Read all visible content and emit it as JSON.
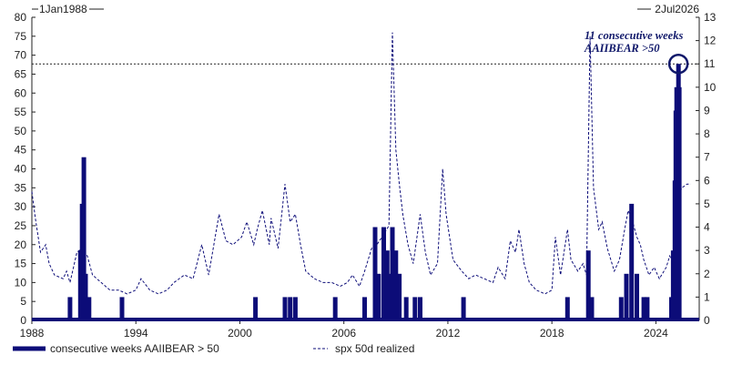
{
  "chart_data": {
    "type": "line",
    "date_range": {
      "start_label": "1Jan1988",
      "end_label": "2Jul2026"
    },
    "x_axis": {
      "ticks": [
        "1988",
        "1994",
        "2000",
        "2006",
        "2012",
        "2018",
        "2024"
      ],
      "range": [
        1988,
        2026.5
      ]
    },
    "y_left": {
      "ticks": [
        0,
        5,
        10,
        15,
        20,
        25,
        30,
        35,
        40,
        45,
        50,
        55,
        60,
        65,
        70,
        75,
        80
      ],
      "range": [
        0,
        80
      ]
    },
    "y_right": {
      "ticks": [
        0,
        1,
        2,
        3,
        4,
        5,
        6,
        7,
        8,
        9,
        10,
        11,
        12,
        13
      ],
      "range": [
        0,
        13
      ]
    },
    "grid": false,
    "legend_position": "bottom",
    "reference_line": {
      "axis": "right",
      "value": 11,
      "style": "dotted"
    },
    "annotation": {
      "lines": [
        "11 consecutive weeks",
        "AAIIBEAR >50"
      ],
      "highlight_x": 2025.3,
      "highlight_y": 11
    },
    "colors": {
      "primary": "#0c0c78",
      "annotation": "#10186a",
      "text": "#222222"
    },
    "series": [
      {
        "name": "consecutive weeks AAIIBEAR > 50",
        "axis": "right",
        "style": "thick-solid",
        "points": [
          [
            1990.2,
            1
          ],
          [
            1990.8,
            3
          ],
          [
            1990.9,
            5
          ],
          [
            1991.0,
            7
          ],
          [
            1991.1,
            2
          ],
          [
            1991.3,
            1
          ],
          [
            1993.2,
            1
          ],
          [
            2000.9,
            1
          ],
          [
            2002.6,
            1
          ],
          [
            2002.9,
            1
          ],
          [
            2003.2,
            1
          ],
          [
            2005.5,
            1
          ],
          [
            2007.2,
            1
          ],
          [
            2007.8,
            4
          ],
          [
            2008.0,
            2
          ],
          [
            2008.3,
            4
          ],
          [
            2008.5,
            3
          ],
          [
            2008.6,
            2
          ],
          [
            2008.8,
            4
          ],
          [
            2009.0,
            3
          ],
          [
            2009.2,
            2
          ],
          [
            2009.6,
            1
          ],
          [
            2010.1,
            1
          ],
          [
            2010.4,
            1
          ],
          [
            2012.9,
            1
          ],
          [
            2018.9,
            1
          ],
          [
            2020.1,
            3
          ],
          [
            2020.3,
            1
          ],
          [
            2022.0,
            1
          ],
          [
            2022.3,
            2
          ],
          [
            2022.6,
            5
          ],
          [
            2022.9,
            2
          ],
          [
            2023.3,
            1
          ],
          [
            2023.5,
            1
          ],
          [
            2024.9,
            1
          ],
          [
            2025.0,
            3
          ],
          [
            2025.1,
            6
          ],
          [
            2025.15,
            9
          ],
          [
            2025.2,
            10
          ],
          [
            2025.3,
            11
          ],
          [
            2025.35,
            10
          ]
        ]
      },
      {
        "name": "spx 50d realized",
        "axis": "left",
        "style": "thin-dashed",
        "points": [
          [
            1988.0,
            34
          ],
          [
            1988.2,
            27
          ],
          [
            1988.5,
            18
          ],
          [
            1988.8,
            20
          ],
          [
            1989.0,
            15
          ],
          [
            1989.3,
            12
          ],
          [
            1989.8,
            11
          ],
          [
            1990.0,
            13
          ],
          [
            1990.2,
            10
          ],
          [
            1990.6,
            18
          ],
          [
            1990.9,
            19
          ],
          [
            1991.2,
            17
          ],
          [
            1991.5,
            12
          ],
          [
            1992.0,
            10
          ],
          [
            1992.5,
            8
          ],
          [
            1993.0,
            8
          ],
          [
            1993.5,
            7
          ],
          [
            1994.0,
            8
          ],
          [
            1994.3,
            11
          ],
          [
            1994.8,
            8
          ],
          [
            1995.3,
            7
          ],
          [
            1995.8,
            8
          ],
          [
            1996.2,
            10
          ],
          [
            1996.8,
            12
          ],
          [
            1997.3,
            11
          ],
          [
            1997.8,
            20
          ],
          [
            1998.2,
            12
          ],
          [
            1998.8,
            28
          ],
          [
            1999.2,
            21
          ],
          [
            1999.6,
            20
          ],
          [
            2000.1,
            22
          ],
          [
            2000.4,
            26
          ],
          [
            2000.8,
            20
          ],
          [
            2001.0,
            24
          ],
          [
            2001.3,
            29
          ],
          [
            2001.7,
            20
          ],
          [
            2001.8,
            27
          ],
          [
            2002.2,
            19
          ],
          [
            2002.6,
            36
          ],
          [
            2002.9,
            26
          ],
          [
            2003.2,
            28
          ],
          [
            2003.5,
            20
          ],
          [
            2003.8,
            13
          ],
          [
            2004.3,
            11
          ],
          [
            2004.8,
            10
          ],
          [
            2005.3,
            10
          ],
          [
            2005.8,
            9
          ],
          [
            2006.2,
            10
          ],
          [
            2006.5,
            12
          ],
          [
            2006.9,
            9
          ],
          [
            2007.2,
            13
          ],
          [
            2007.6,
            19
          ],
          [
            2007.9,
            20
          ],
          [
            2008.2,
            22
          ],
          [
            2008.6,
            25
          ],
          [
            2008.8,
            76
          ],
          [
            2009.0,
            45
          ],
          [
            2009.2,
            36
          ],
          [
            2009.4,
            28
          ],
          [
            2009.7,
            20
          ],
          [
            2010.0,
            15
          ],
          [
            2010.4,
            28
          ],
          [
            2010.7,
            18
          ],
          [
            2011.0,
            12
          ],
          [
            2011.4,
            15
          ],
          [
            2011.7,
            40
          ],
          [
            2011.9,
            28
          ],
          [
            2012.3,
            16
          ],
          [
            2012.8,
            13
          ],
          [
            2013.2,
            11
          ],
          [
            2013.6,
            12
          ],
          [
            2014.1,
            11
          ],
          [
            2014.6,
            10
          ],
          [
            2014.9,
            14
          ],
          [
            2015.3,
            11
          ],
          [
            2015.6,
            21
          ],
          [
            2015.9,
            18
          ],
          [
            2016.1,
            24
          ],
          [
            2016.4,
            15
          ],
          [
            2016.7,
            10
          ],
          [
            2017.1,
            8
          ],
          [
            2017.6,
            7
          ],
          [
            2018.0,
            8
          ],
          [
            2018.2,
            22
          ],
          [
            2018.5,
            12
          ],
          [
            2018.9,
            24
          ],
          [
            2019.1,
            16
          ],
          [
            2019.5,
            13
          ],
          [
            2019.8,
            15
          ],
          [
            2020.0,
            12
          ],
          [
            2020.2,
            75
          ],
          [
            2020.4,
            35
          ],
          [
            2020.7,
            24
          ],
          [
            2020.9,
            26
          ],
          [
            2021.2,
            19
          ],
          [
            2021.6,
            13
          ],
          [
            2021.9,
            16
          ],
          [
            2022.2,
            24
          ],
          [
            2022.4,
            29
          ],
          [
            2022.6,
            27
          ],
          [
            2022.9,
            22
          ],
          [
            2023.1,
            20
          ],
          [
            2023.3,
            16
          ],
          [
            2023.6,
            12
          ],
          [
            2023.9,
            14
          ],
          [
            2024.2,
            11
          ],
          [
            2024.6,
            14
          ],
          [
            2024.8,
            17
          ],
          [
            2025.0,
            15
          ],
          [
            2025.2,
            24
          ],
          [
            2025.3,
            33
          ],
          [
            2025.5,
            35
          ],
          [
            2025.8,
            36
          ],
          [
            2026.0,
            36
          ]
        ]
      }
    ]
  }
}
